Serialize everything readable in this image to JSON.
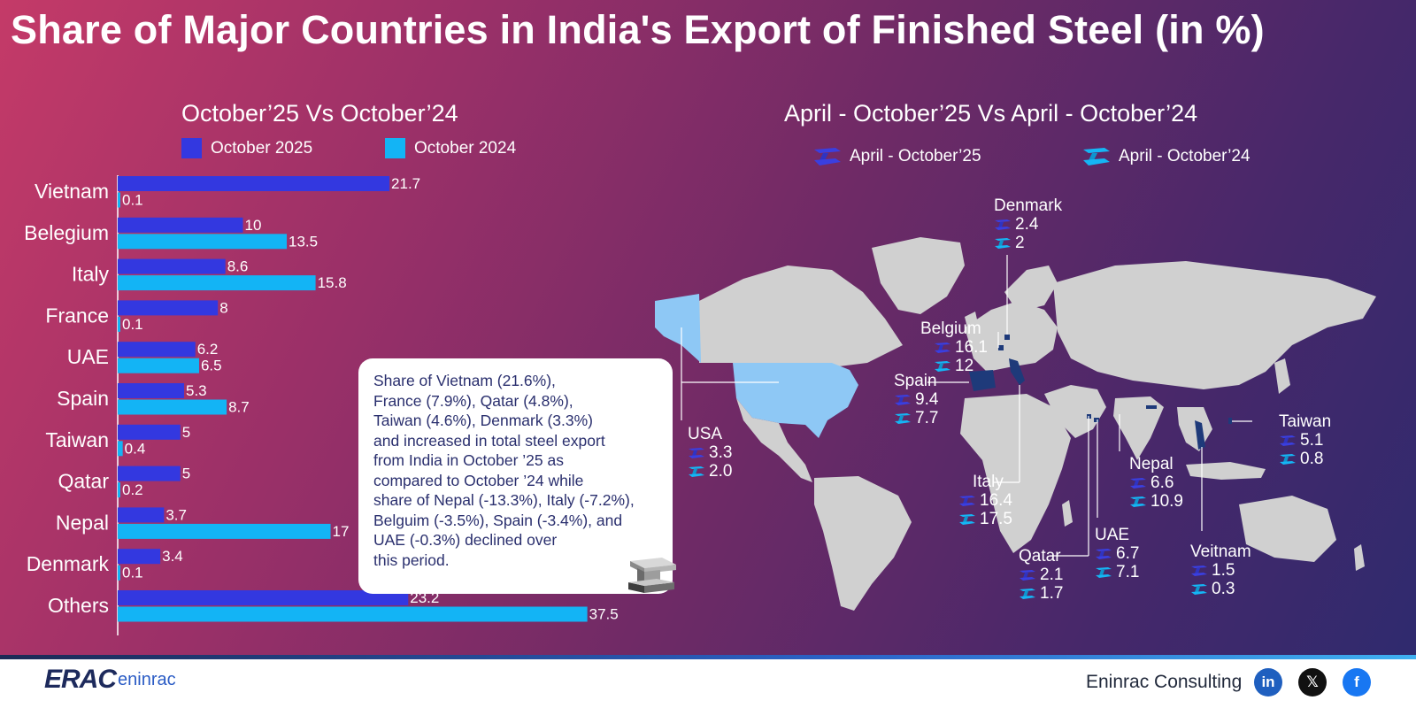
{
  "title": "Share of Major Countries in India's Export of Finished Steel (in %)",
  "left_panel": {
    "subtitle": "October’25 Vs October’24",
    "legend": [
      {
        "label": "October 2025",
        "color": "#3338e0"
      },
      {
        "label": "October 2024",
        "color": "#13b4f5"
      }
    ]
  },
  "right_panel": {
    "subtitle": "April - October’25 Vs April - October’24",
    "legend": [
      {
        "label": "April - October’25",
        "icon": "steel-beam-icon-dark"
      },
      {
        "label": "April - October’24",
        "icon": "steel-beam-icon-light"
      }
    ]
  },
  "callout": {
    "text": "Share of Vietnam (21.6%),\nFrance (7.9%), Qatar (4.8%),\nTaiwan (4.6%), Denmark (3.3%)\nand increased in total  steel export\nfrom India in October ’25 as\ncompared to October ’24 while\nshare of Nepal (-13.3%), Italy (-7.2%),\nBelguim (-3.5%), Spain (-3.4%), and\nUAE (-0.3%) declined over\nthis period."
  },
  "chart_data": [
    {
      "type": "bar",
      "orientation": "horizontal",
      "title": "October’25 Vs October’24",
      "categories": [
        "Vietnam",
        "Belegium",
        "Italy",
        "France",
        "UAE",
        "Spain",
        "Taiwan",
        "Qatar",
        "Nepal",
        "Denmark",
        "Others"
      ],
      "series": [
        {
          "name": "October 2025",
          "color": "#3338e0",
          "values": [
            21.7,
            10,
            8.6,
            8,
            6.2,
            5.3,
            5,
            5,
            3.7,
            3.4,
            23.2
          ],
          "labels": [
            "21.7",
            "10",
            "8.6",
            "8",
            "6.2",
            "5.3",
            "5",
            "5",
            "3.7",
            "3.4",
            "23.2"
          ]
        },
        {
          "name": "October 2024",
          "color": "#13b4f5",
          "values": [
            0.1,
            13.5,
            15.8,
            0.1,
            6.5,
            8.7,
            0.4,
            0.2,
            17,
            0.1,
            37.5
          ],
          "labels": [
            "0.1",
            "13.5",
            "15.8",
            "0.1",
            "6.5",
            "8.7",
            "0.4",
            "0.2",
            "17",
            "0.1",
            "37.5"
          ]
        }
      ],
      "legend_position": "top",
      "grid": false
    },
    {
      "type": "table",
      "subtype": "annotated-map",
      "title": "April - October’25 Vs April - October’24",
      "series_names": [
        "April - October’25",
        "April - October’24"
      ],
      "rows": [
        {
          "country": "Denmark",
          "apr_oct_25": "2.4",
          "apr_oct_24": "2"
        },
        {
          "country": "Belgium",
          "apr_oct_25": "16.1",
          "apr_oct_24": "12"
        },
        {
          "country": "Spain",
          "apr_oct_25": "9.4",
          "apr_oct_24": "7.7"
        },
        {
          "country": "USA",
          "apr_oct_25": "3.3",
          "apr_oct_24": "2.0"
        },
        {
          "country": "Taiwan",
          "apr_oct_25": "5.1",
          "apr_oct_24": "0.8"
        },
        {
          "country": "Nepal",
          "apr_oct_25": "6.6",
          "apr_oct_24": "10.9"
        },
        {
          "country": "Italy",
          "apr_oct_25": "16.4",
          "apr_oct_24": "17.5"
        },
        {
          "country": "UAE",
          "apr_oct_25": "6.7",
          "apr_oct_24": "7.1"
        },
        {
          "country": "Qatar",
          "apr_oct_25": "2.1",
          "apr_oct_24": "1.7"
        },
        {
          "country": "Veitnam",
          "apr_oct_25": "1.5",
          "apr_oct_24": "0.3"
        }
      ],
      "colors": {
        "land": "#d0d0d0",
        "highlight_light": "#8ec8f5",
        "highlight_dark": "#1e3a7a"
      }
    }
  ],
  "footer": {
    "logo_main": "ERAC",
    "logo_sub": "eninrac",
    "company": "Eninrac Consulting",
    "social": [
      {
        "name": "linkedin",
        "glyph": "in",
        "color": "#1f5fbf"
      },
      {
        "name": "x",
        "glyph": "𝕏",
        "color": "#111111"
      },
      {
        "name": "facebook",
        "glyph": "f",
        "color": "#1877f2"
      }
    ]
  }
}
